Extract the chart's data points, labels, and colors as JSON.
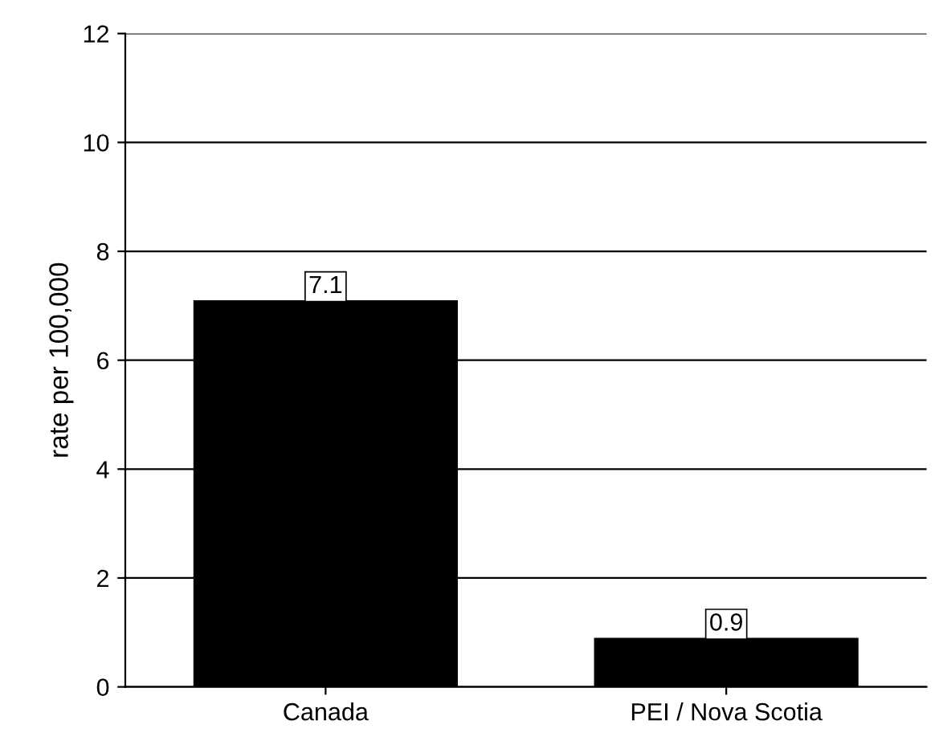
{
  "chart_data": {
    "type": "bar",
    "ylabel": "rate per 100,000",
    "categories": [
      "Canada",
      "PEI / Nova Scotia"
    ],
    "values": [
      7.1,
      0.9
    ],
    "color": "#000000",
    "ylim": [
      0,
      12
    ],
    "yticks": [
      0,
      2,
      4,
      6,
      8,
      10,
      12
    ],
    "grid": "y",
    "data_labels": true
  }
}
